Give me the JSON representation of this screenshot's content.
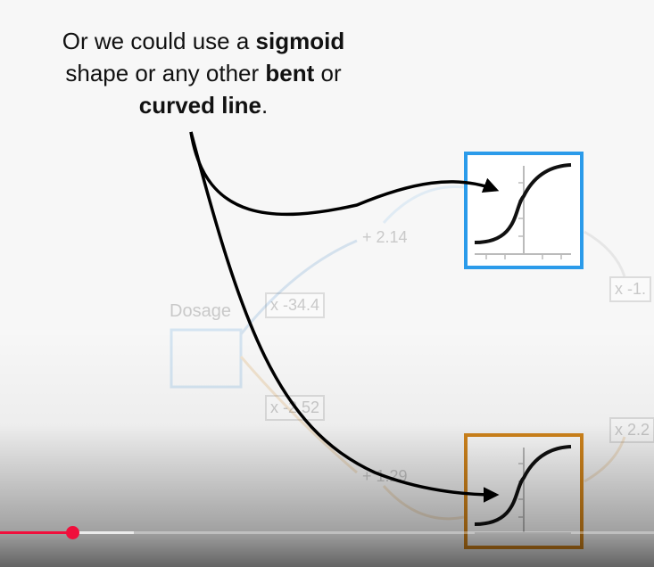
{
  "caption": {
    "part1": "Or we could use a ",
    "bold1": "sigmoid",
    "part2": "shape or any other ",
    "bold2": "bent",
    "part3": " or",
    "bold3": "curved line",
    "part4": "."
  },
  "background_labels": {
    "dosage": "Dosage",
    "w1": "x -34.4",
    "b1": "+ 2.14",
    "w2": "x -2.52",
    "b2": "+ 1.29",
    "w3": "x -1.",
    "w4": "x 2.2"
  },
  "colors": {
    "top_box": "#2b9bea",
    "bottom_box": "#d5871c",
    "progress": "#f00f3c"
  },
  "player": {
    "played_fraction": 0.11,
    "buffered_fraction": 0.205
  }
}
